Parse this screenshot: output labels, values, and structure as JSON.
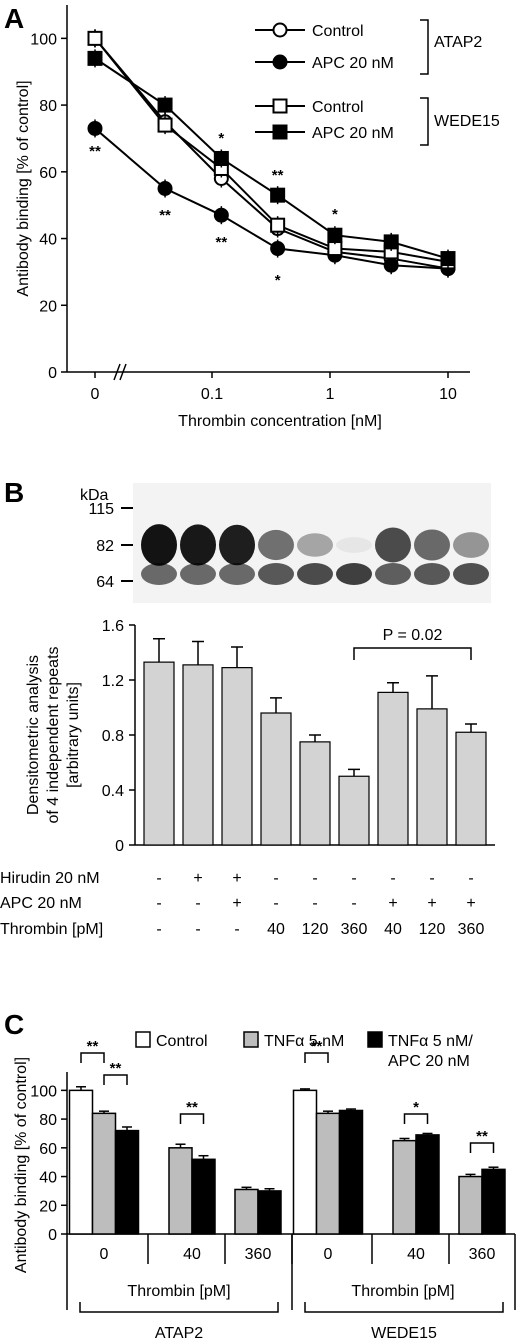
{
  "chart_data": [
    {
      "panel": "A",
      "type": "line",
      "ylabel": "Antibody binding [% of control]",
      "xlabel": "Thrombin concentration [nM]",
      "ylim": [
        0,
        110
      ],
      "yticks": [
        "0",
        "20",
        "40",
        "60",
        "80",
        "100"
      ],
      "xticks": [
        "0",
        "0.1",
        "1",
        "10"
      ],
      "x_scale": "log (with axis break at 0)",
      "x": [
        0,
        0.04,
        0.12,
        0.36,
        1.1,
        3.3,
        10
      ],
      "legend_groups": [
        {
          "label": "ATAP2",
          "entries": [
            "Control",
            "APC 20 nM"
          ]
        },
        {
          "label": "WEDE15",
          "entries": [
            "Control",
            "APC 20 nM"
          ]
        }
      ],
      "series": [
        {
          "name": "Control",
          "group": "ATAP2",
          "marker": "open-circle",
          "values": [
            100,
            75,
            58,
            43,
            36,
            34,
            31
          ]
        },
        {
          "name": "APC 20 nM",
          "group": "ATAP2",
          "marker": "filled-circle",
          "values": [
            73,
            55,
            47,
            37,
            35,
            32,
            31
          ]
        },
        {
          "name": "Control",
          "group": "WEDE15",
          "marker": "open-square",
          "values": [
            100,
            74,
            61,
            44,
            37,
            36,
            33
          ]
        },
        {
          "name": "APC 20 nM",
          "group": "WEDE15",
          "marker": "filled-square",
          "values": [
            94,
            80,
            64,
            53,
            41,
            39,
            34
          ]
        }
      ],
      "annotations": [
        "**",
        "**",
        "*",
        "**",
        "**",
        "*",
        "*"
      ]
    },
    {
      "panel": "B",
      "type": "bar",
      "blot_label": "kDa",
      "blot_markers": [
        "115",
        "82",
        "64"
      ],
      "ylabel": "Densitometric analysis of 4 independent repeats [arbitrary units]",
      "ylabel_lines": [
        "Densitometric analysis",
        "of 4 independent repeats",
        "[arbitrary units]"
      ],
      "ylim": [
        0,
        1.6
      ],
      "yticks": [
        "0",
        "0.4",
        "0.8",
        "1.2",
        "1.6"
      ],
      "values": [
        1.33,
        1.31,
        1.29,
        0.96,
        0.75,
        0.5,
        1.11,
        0.99,
        0.82
      ],
      "errors": [
        0.17,
        0.17,
        0.15,
        0.11,
        0.05,
        0.05,
        0.07,
        0.24,
        0.06
      ],
      "annotation": "P = 0.02",
      "condition_rows": [
        {
          "label": "Hirudin 20 nM",
          "values": [
            "-",
            "+",
            "+",
            "-",
            "-",
            "-",
            "-",
            "-",
            "-"
          ]
        },
        {
          "label": "APC 20 nM",
          "values": [
            "-",
            "-",
            "+",
            "-",
            "-",
            "-",
            "+",
            "+",
            "+"
          ]
        },
        {
          "label": "Thrombin [pM]",
          "values": [
            "-",
            "-",
            "-",
            "40",
            "120",
            "360",
            "40",
            "120",
            "360"
          ]
        }
      ]
    },
    {
      "panel": "C",
      "type": "bar",
      "ylabel": "Antibody binding [% of control]",
      "ylim": [
        0,
        110
      ],
      "yticks": [
        "0",
        "20",
        "40",
        "60",
        "80",
        "100"
      ],
      "legend": [
        "Control",
        "TNFα 5 nM",
        "TNFα 5 nM/ APC 20 nM"
      ],
      "legend_lines": [
        "Control",
        "TNFα 5 nM",
        "TNFα 5 nM/",
        "APC 20 nM"
      ],
      "series_colors": [
        "#ffffff",
        "#bdbdbd",
        "#000000"
      ],
      "categories": [
        "0",
        "40",
        "360",
        "0",
        "40",
        "360"
      ],
      "group_sublabel": "Thrombin [pM]",
      "groups": [
        "ATAP2",
        "WEDE15"
      ],
      "series": [
        {
          "name": "Control",
          "values": [
            100,
            null,
            null,
            100,
            null,
            null
          ],
          "errors": [
            2.5,
            null,
            null,
            1,
            null,
            null
          ]
        },
        {
          "name": "TNFα 5 nM",
          "values": [
            84,
            60,
            31,
            84,
            65,
            40
          ],
          "errors": [
            1.5,
            2.5,
            1.5,
            1.5,
            1.5,
            1.5
          ]
        },
        {
          "name": "TNFα 5 nM/ APC 20 nM",
          "values": [
            72,
            52,
            30,
            86,
            69,
            45
          ],
          "errors": [
            2.5,
            2.5,
            1.5,
            1,
            1,
            1.5
          ]
        }
      ],
      "significance": [
        "**",
        "**",
        "**",
        "**",
        "*",
        "**"
      ]
    }
  ],
  "labels": {
    "panel_a": "A",
    "panel_b": "B",
    "panel_c": "C"
  },
  "colors": {
    "bar_gray": "#d3d3d3",
    "tnf_gray": "#bdbdbd",
    "black": "#000000"
  }
}
